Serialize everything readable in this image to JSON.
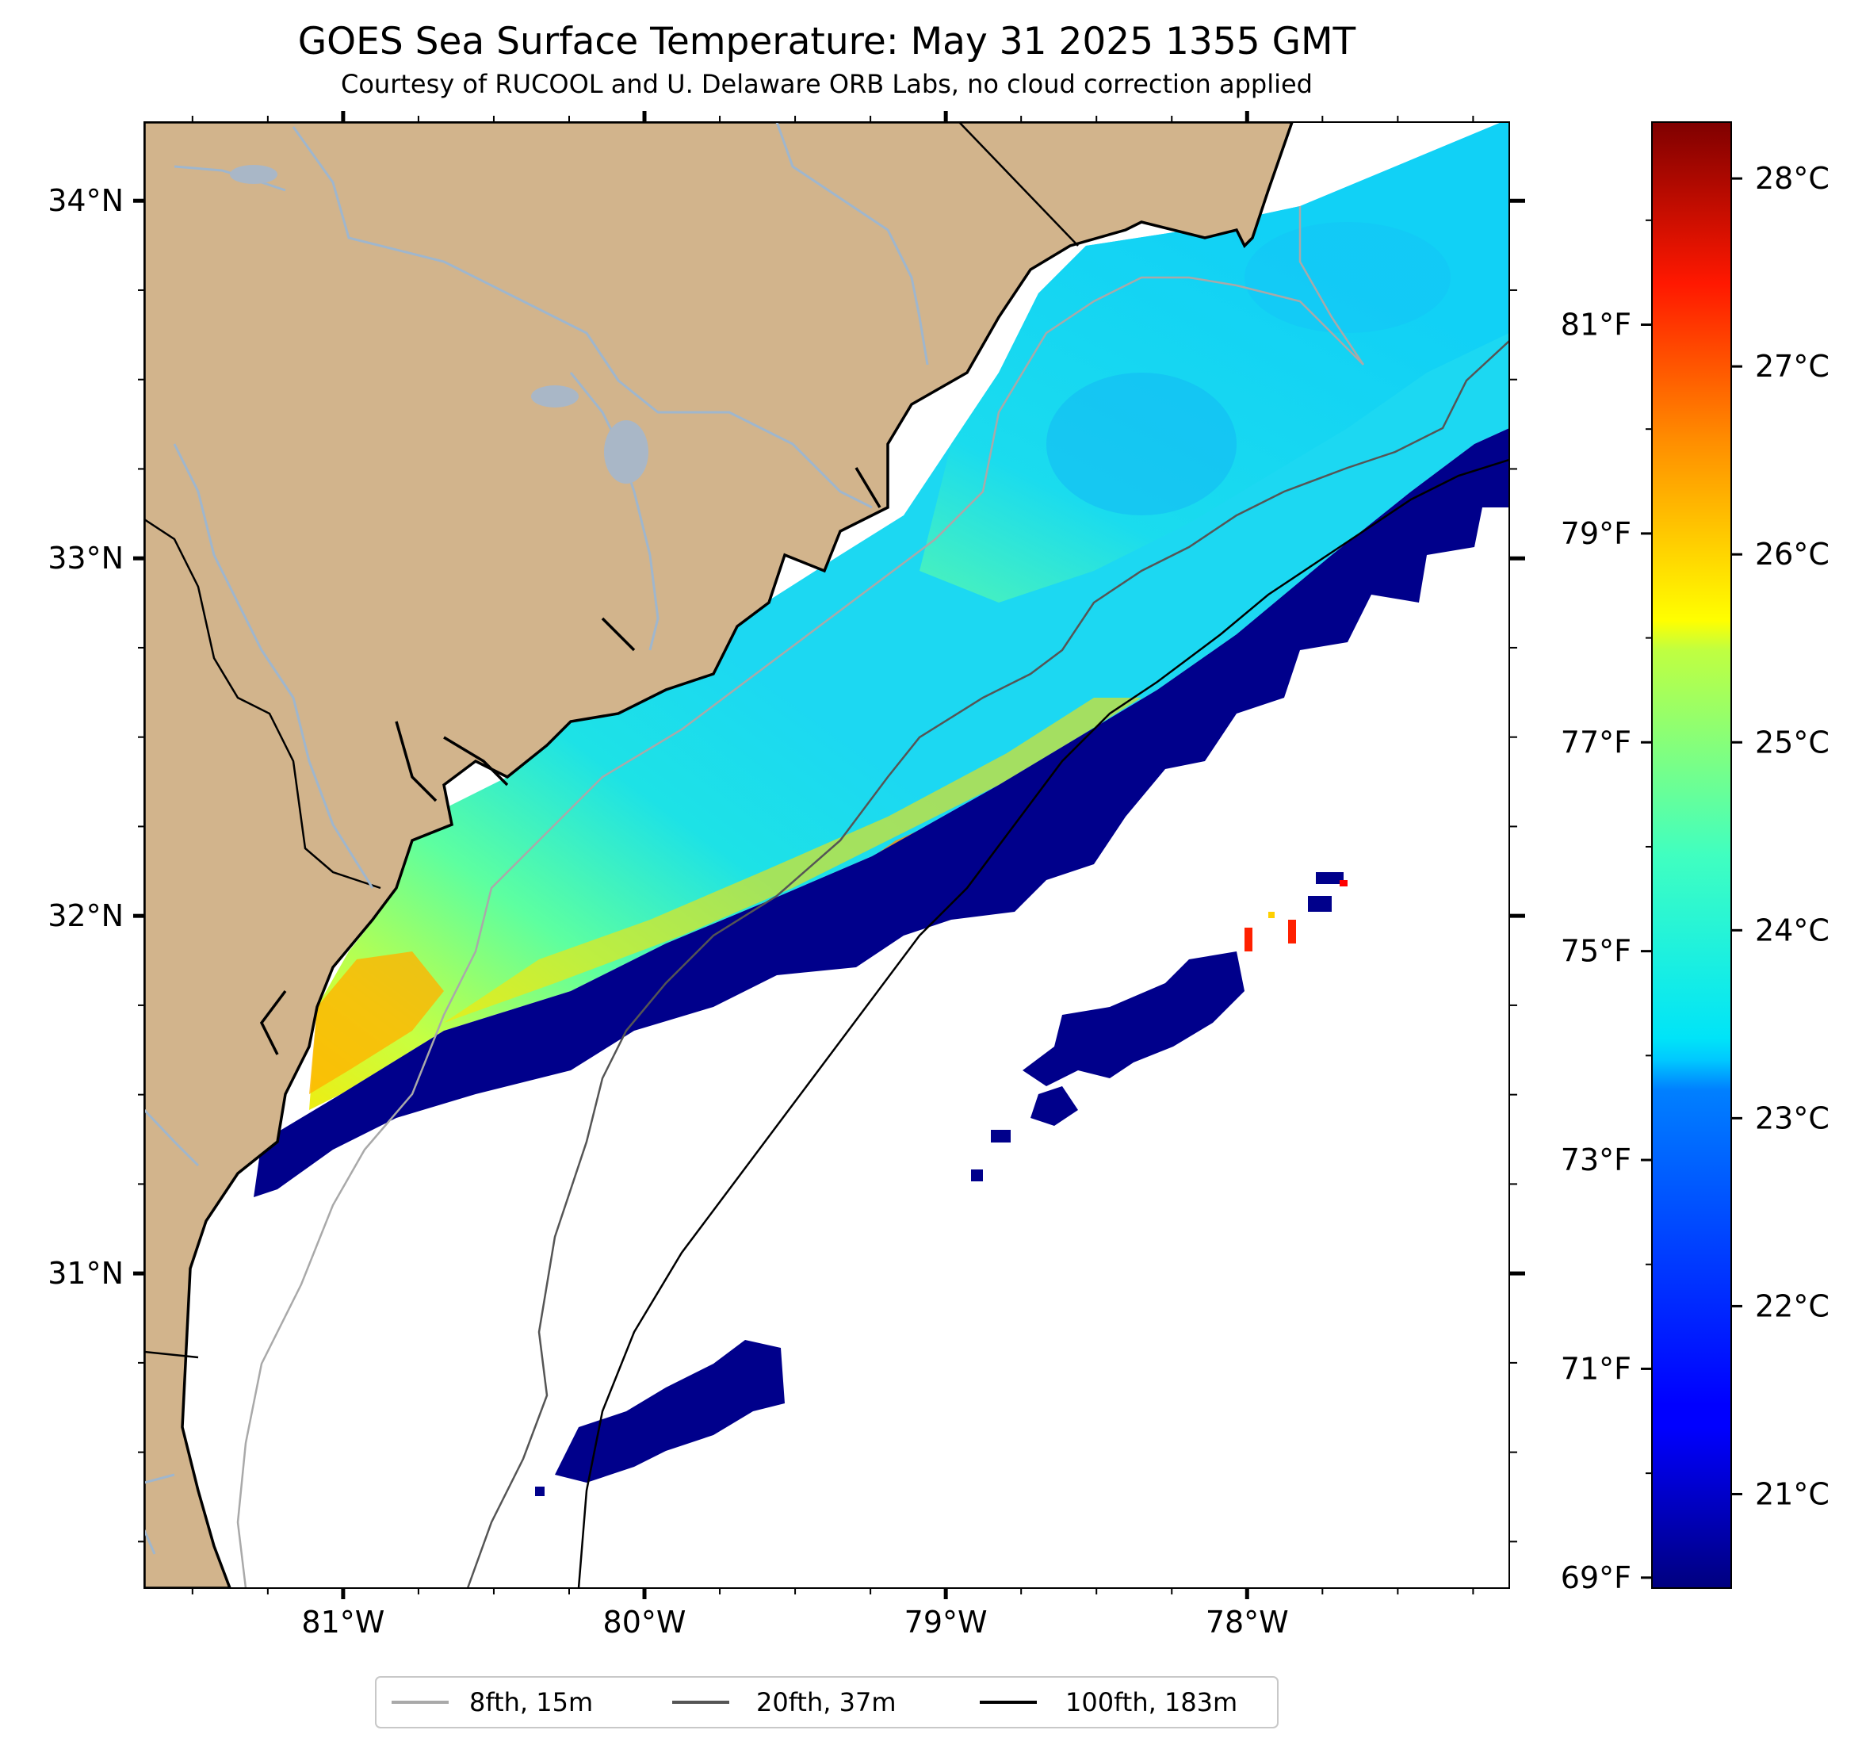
{
  "title": "GOES Sea Surface Temperature: May 31 2025 1355 GMT",
  "subtitle": "Courtesy of RUCOOL and U. Delaware ORB Labs, no cloud correction applied",
  "map": {
    "lon_range": [
      -81.66,
      -77.13
    ],
    "lat_range": [
      30.12,
      34.22
    ],
    "lon_ticks": [
      {
        "value": -81,
        "label": "81°W"
      },
      {
        "value": -80,
        "label": "80°W"
      },
      {
        "value": -79,
        "label": "79°W"
      },
      {
        "value": -78,
        "label": "78°W"
      }
    ],
    "lat_ticks": [
      {
        "value": 34,
        "label": "34°N"
      },
      {
        "value": 33,
        "label": "33°N"
      },
      {
        "value": 32,
        "label": "32°N"
      },
      {
        "value": 31,
        "label": "31°N"
      }
    ],
    "colors": {
      "land": "#d2b48c",
      "river": "#9fb6cd",
      "coastline": "#000000",
      "no_data": "#ffffff",
      "cold_edge": "#00008b"
    }
  },
  "colorbar": {
    "colormap": "jet",
    "celsius_range": [
      20.5,
      28.3
    ],
    "celsius_ticks": [
      {
        "value": 21,
        "label": "21°C"
      },
      {
        "value": 22,
        "label": "22°C"
      },
      {
        "value": 23,
        "label": "23°C"
      },
      {
        "value": 24,
        "label": "24°C"
      },
      {
        "value": 25,
        "label": "25°C"
      },
      {
        "value": 26,
        "label": "26°C"
      },
      {
        "value": 27,
        "label": "27°C"
      },
      {
        "value": 28,
        "label": "28°C"
      }
    ],
    "fahrenheit_ticks": [
      {
        "value": 69,
        "label": "69°F"
      },
      {
        "value": 71,
        "label": "71°F"
      },
      {
        "value": 73,
        "label": "73°F"
      },
      {
        "value": 75,
        "label": "75°F"
      },
      {
        "value": 77,
        "label": "77°F"
      },
      {
        "value": 79,
        "label": "79°F"
      },
      {
        "value": 81,
        "label": "81°F"
      }
    ]
  },
  "legend": {
    "placement": "bottom-center",
    "items": [
      {
        "label": "8fth, 15m",
        "color": "#a9a9a9"
      },
      {
        "label": "20fth, 37m",
        "color": "#555555"
      },
      {
        "label": "100fth, 183m",
        "color": "#000000"
      }
    ]
  }
}
